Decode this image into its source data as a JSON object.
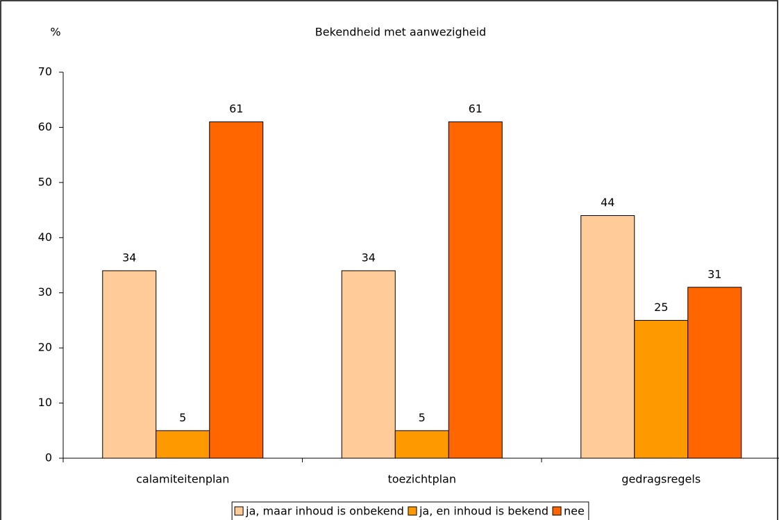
{
  "chart_data": {
    "type": "bar",
    "title": "Bekendheid met aanwezigheid",
    "y_label": "%",
    "categories": [
      "calamiteitenplan",
      "toezichtplan",
      "gedragsregels"
    ],
    "series": [
      {
        "name": "ja, maar inhoud is onbekend",
        "color": "#FFCC99",
        "values": [
          34,
          34,
          44
        ]
      },
      {
        "name": "ja, en inhoud is bekend",
        "color": "#FF9900",
        "values": [
          5,
          5,
          25
        ]
      },
      {
        "name": "nee",
        "color": "#FF6600",
        "values": [
          61,
          61,
          31
        ]
      }
    ],
    "ylim": [
      0,
      70
    ],
    "yticks": [
      0,
      10,
      20,
      30,
      40,
      50,
      60,
      70
    ],
    "grid": false,
    "legend": "bottom"
  }
}
